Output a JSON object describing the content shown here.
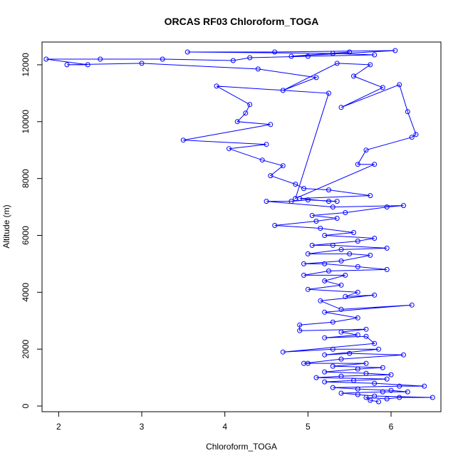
{
  "chart_data": {
    "type": "line",
    "title": "ORCAS RF03 Chloroform_TOGA",
    "xlabel": "Chloroform_TOGA",
    "ylabel": "Altitude (m)",
    "xlim": [
      1.8,
      6.6
    ],
    "ylim": [
      -200,
      12800
    ],
    "xticks": [
      2,
      3,
      4,
      5,
      6
    ],
    "yticks": [
      0,
      2000,
      4000,
      6000,
      8000,
      10000,
      12000
    ],
    "color": "#0000ff",
    "series": [
      {
        "name": "Chloroform_TOGA",
        "points": [
          [
            5.85,
            150
          ],
          [
            5.75,
            200
          ],
          [
            5.7,
            300
          ],
          [
            5.95,
            250
          ],
          [
            6.1,
            300
          ],
          [
            6.5,
            300
          ],
          [
            5.8,
            350
          ],
          [
            5.6,
            400
          ],
          [
            5.4,
            450
          ],
          [
            5.9,
            500
          ],
          [
            6.2,
            500
          ],
          [
            6.0,
            550
          ],
          [
            5.6,
            600
          ],
          [
            5.3,
            650
          ],
          [
            6.1,
            700
          ],
          [
            6.4,
            700
          ],
          [
            5.8,
            800
          ],
          [
            5.2,
            850
          ],
          [
            5.55,
            900
          ],
          [
            5.95,
            950
          ],
          [
            5.1,
            1000
          ],
          [
            5.4,
            1050
          ],
          [
            6.0,
            1100
          ],
          [
            5.7,
            1150
          ],
          [
            5.2,
            1200
          ],
          [
            5.6,
            1300
          ],
          [
            5.9,
            1350
          ],
          [
            5.3,
            1400
          ],
          [
            5.7,
            1500
          ],
          [
            5.0,
            1500
          ],
          [
            4.95,
            1500
          ],
          [
            5.4,
            1650
          ],
          [
            6.15,
            1800
          ],
          [
            5.5,
            1850
          ],
          [
            5.2,
            1800
          ],
          [
            5.85,
            2000
          ],
          [
            5.3,
            2000
          ],
          [
            4.7,
            1900
          ],
          [
            5.8,
            2200
          ],
          [
            5.7,
            2450
          ],
          [
            5.2,
            2400
          ],
          [
            5.6,
            2500
          ],
          [
            5.4,
            2600
          ],
          [
            5.7,
            2700
          ],
          [
            4.9,
            2650
          ],
          [
            4.9,
            2850
          ],
          [
            5.3,
            2950
          ],
          [
            5.6,
            3100
          ],
          [
            5.2,
            3300
          ],
          [
            6.25,
            3550
          ],
          [
            5.4,
            3400
          ],
          [
            5.15,
            3700
          ],
          [
            5.8,
            3900
          ],
          [
            5.45,
            3850
          ],
          [
            5.6,
            4000
          ],
          [
            5.0,
            4100
          ],
          [
            5.4,
            4250
          ],
          [
            5.2,
            4400
          ],
          [
            5.45,
            4600
          ],
          [
            4.95,
            4600
          ],
          [
            5.25,
            4750
          ],
          [
            5.95,
            4800
          ],
          [
            5.6,
            4900
          ],
          [
            5.2,
            5000
          ],
          [
            4.95,
            5000
          ],
          [
            5.4,
            5100
          ],
          [
            5.75,
            5300
          ],
          [
            5.5,
            5350
          ],
          [
            5.0,
            5350
          ],
          [
            5.4,
            5500
          ],
          [
            5.95,
            5550
          ],
          [
            5.3,
            5650
          ],
          [
            5.05,
            5650
          ],
          [
            5.6,
            5800
          ],
          [
            5.8,
            5900
          ],
          [
            5.2,
            6000
          ],
          [
            5.55,
            6100
          ],
          [
            5.15,
            6250
          ],
          [
            4.6,
            6350
          ],
          [
            5.1,
            6500
          ],
          [
            5.35,
            6600
          ],
          [
            5.05,
            6700
          ],
          [
            5.45,
            6800
          ],
          [
            5.95,
            7000
          ],
          [
            6.15,
            7050
          ],
          [
            5.3,
            7000
          ],
          [
            4.5,
            7200
          ],
          [
            4.8,
            7200
          ],
          [
            5.0,
            7250
          ],
          [
            5.35,
            7200
          ],
          [
            5.25,
            7200
          ],
          [
            4.9,
            7300
          ],
          [
            5.75,
            7400
          ],
          [
            5.25,
            7600
          ],
          [
            4.95,
            7650
          ],
          [
            4.85,
            7800
          ],
          [
            4.55,
            8100
          ],
          [
            4.7,
            8450
          ],
          [
            4.45,
            8650
          ],
          [
            4.05,
            9050
          ],
          [
            4.5,
            9200
          ],
          [
            3.5,
            9350
          ],
          [
            4.55,
            9900
          ],
          [
            4.15,
            10000
          ],
          [
            4.25,
            10300
          ],
          [
            4.3,
            10600
          ],
          [
            3.9,
            11250
          ],
          [
            5.25,
            11000
          ],
          [
            4.85,
            7300
          ],
          [
            5.8,
            8500
          ],
          [
            5.6,
            8500
          ],
          [
            5.7,
            9000
          ],
          [
            6.25,
            9450
          ],
          [
            6.3,
            9550
          ],
          [
            6.2,
            10350
          ],
          [
            6.1,
            11300
          ],
          [
            5.4,
            10500
          ],
          [
            5.9,
            11200
          ],
          [
            5.55,
            11600
          ],
          [
            5.75,
            12000
          ],
          [
            5.35,
            12050
          ],
          [
            4.7,
            11100
          ],
          [
            5.1,
            11550
          ],
          [
            4.4,
            11850
          ],
          [
            3.0,
            12050
          ],
          [
            2.1,
            12000
          ],
          [
            2.35,
            12000
          ],
          [
            1.85,
            12200
          ],
          [
            2.5,
            12200
          ],
          [
            3.25,
            12200
          ],
          [
            4.1,
            12150
          ],
          [
            4.3,
            12250
          ],
          [
            5.0,
            12300
          ],
          [
            5.8,
            12350
          ],
          [
            5.3,
            12400
          ],
          [
            3.55,
            12450
          ],
          [
            4.6,
            12450
          ],
          [
            6.05,
            12500
          ],
          [
            4.8,
            12300
          ],
          [
            5.5,
            12450
          ]
        ]
      }
    ]
  }
}
